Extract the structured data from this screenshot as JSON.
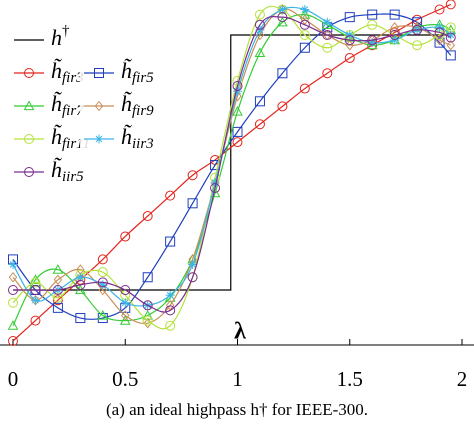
{
  "chart_data": {
    "type": "line",
    "x_label": "λ",
    "caption": "(a) an ideal highpass h† for IEEE-300.",
    "xlim": [
      0,
      2
    ],
    "xticks": [
      0,
      0.5,
      1,
      1.5,
      2
    ],
    "ylim": [
      -0.2,
      1.12
    ],
    "x": [
      0,
      0.1,
      0.2,
      0.3,
      0.4,
      0.5,
      0.6,
      0.7,
      0.8,
      0.9,
      1.0,
      1.1,
      1.2,
      1.3,
      1.4,
      1.5,
      1.6,
      1.7,
      1.8,
      1.9,
      1.95
    ],
    "series": [
      {
        "name": "h†",
        "color": "#000000",
        "marker": "none",
        "x": [
          0,
          0.97,
          0.97,
          1.95
        ],
        "values": [
          0,
          0,
          1,
          1
        ]
      },
      {
        "name": "h̃fir3",
        "color": "#e3241c",
        "marker": "circle",
        "values": [
          -0.2,
          -0.12,
          -0.04,
          0.04,
          0.12,
          0.21,
          0.29,
          0.37,
          0.45,
          0.51,
          0.58,
          0.65,
          0.72,
          0.79,
          0.85,
          0.91,
          0.96,
          1.01,
          1.06,
          1.1,
          1.12
        ]
      },
      {
        "name": "h̃fir5",
        "color": "#1f3fbf",
        "marker": "square",
        "values": [
          0.12,
          0.0,
          -0.07,
          -0.11,
          -0.11,
          -0.07,
          0.05,
          0.19,
          0.34,
          0.49,
          0.62,
          0.74,
          0.85,
          0.95,
          1.03,
          1.07,
          1.08,
          1.08,
          1.05,
          0.97,
          0.92
        ]
      },
      {
        "name": "h̃fir7",
        "color": "#33cc33",
        "marker": "triangle",
        "values": [
          -0.14,
          0.04,
          0.08,
          0.0,
          -0.1,
          -0.12,
          -0.1,
          -0.03,
          0.12,
          0.38,
          0.7,
          0.93,
          1.05,
          1.08,
          1.04,
          0.99,
          0.96,
          0.98,
          1.03,
          1.04,
          1.02
        ]
      },
      {
        "name": "h̃fir9",
        "color": "#c8905a",
        "marker": "diamond",
        "values": [
          0.05,
          -0.04,
          0.04,
          0.08,
          0.0,
          -0.1,
          -0.13,
          -0.06,
          0.12,
          0.42,
          0.76,
          1.0,
          1.1,
          1.06,
          1.0,
          0.96,
          0.98,
          1.03,
          1.03,
          0.98,
          0.96
        ]
      },
      {
        "name": "h̃fir11",
        "color": "#b5e33a",
        "marker": "circle",
        "values": [
          -0.05,
          0.03,
          -0.03,
          0.06,
          0.07,
          -0.02,
          -0.12,
          -0.14,
          0.05,
          0.44,
          0.82,
          1.08,
          1.1,
          1.0,
          0.95,
          1.0,
          1.04,
          1.0,
          0.96,
          1.0,
          1.03
        ]
      },
      {
        "name": "h̃iir3",
        "color": "#3cb4e6",
        "marker": "star",
        "values": [
          0.1,
          -0.04,
          0.0,
          0.05,
          0.02,
          -0.05,
          -0.06,
          -0.02,
          0.1,
          0.42,
          0.78,
          1.02,
          1.1,
          1.1,
          1.05,
          1.0,
          0.97,
          0.98,
          1.02,
          1.03,
          1.0
        ]
      },
      {
        "name": "h̃iir5",
        "color": "#7b2d8e",
        "marker": "circle",
        "values": [
          0.0,
          0.0,
          0.0,
          0.02,
          0.03,
          0.0,
          -0.06,
          -0.08,
          0.05,
          0.4,
          0.8,
          1.04,
          1.07,
          1.04,
          1.0,
          0.98,
          0.98,
          1.0,
          1.02,
          1.01,
          0.99
        ]
      }
    ]
  }
}
